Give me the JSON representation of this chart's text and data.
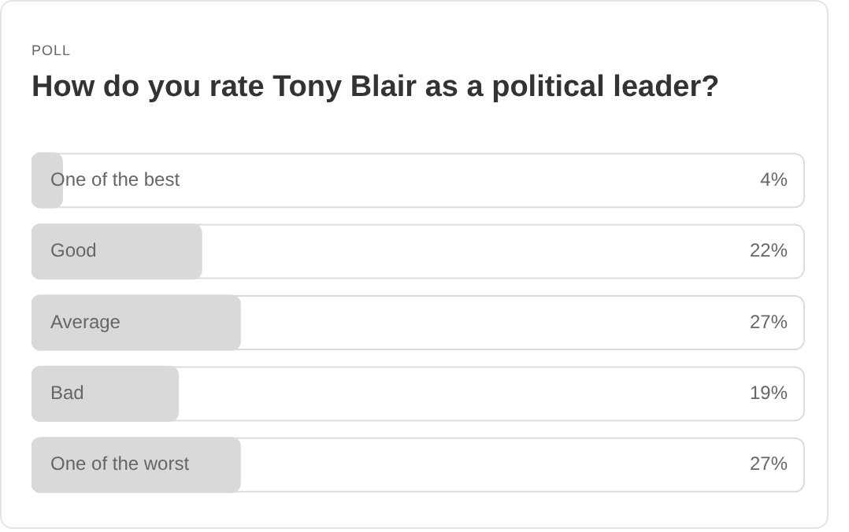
{
  "chart_data": {
    "type": "bar",
    "orientation": "horizontal",
    "title": "How do you rate Tony Blair as a political leader?",
    "annotations": [
      "POLL"
    ],
    "categories": [
      "One of the best",
      "Good",
      "Average",
      "Bad",
      "One of the worst"
    ],
    "values": [
      4,
      22,
      27,
      19,
      27
    ],
    "value_labels": [
      "4%",
      "22%",
      "27%",
      "19%",
      "27%"
    ],
    "color": "#d9d9d9",
    "xlim": [
      0,
      100
    ]
  }
}
